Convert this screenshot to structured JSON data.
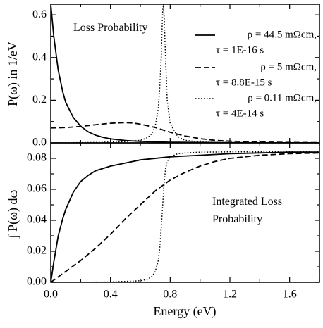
{
  "chart_data": [
    {
      "type": "line",
      "panel": "top",
      "ylabel": "P(ω) in 1/eV",
      "xlabel": "",
      "xlim": [
        0,
        1.8
      ],
      "ylim": [
        0,
        0.65
      ],
      "yticks": [
        0.0,
        0.2,
        0.4,
        0.6
      ],
      "ytick_labels": [
        "0.0",
        "0.2",
        "0.4",
        "0.6"
      ],
      "xticks": [
        0.0,
        0.4,
        0.8,
        1.2,
        1.6
      ],
      "annotation": "Loss Probability",
      "legend_position": "top-right",
      "series": [
        {
          "name_line1": "ρ = 44.5 mΩcm,",
          "name_line2": "τ = 1E-16 s",
          "style": "solid",
          "x": [
            0.0,
            0.02,
            0.05,
            0.08,
            0.1,
            0.15,
            0.2,
            0.25,
            0.3,
            0.35,
            0.4,
            0.5,
            0.6,
            0.7,
            0.8,
            1.0,
            1.2,
            1.4,
            1.6,
            1.8
          ],
          "y": [
            0.65,
            0.5,
            0.34,
            0.24,
            0.19,
            0.12,
            0.078,
            0.052,
            0.036,
            0.026,
            0.019,
            0.011,
            0.007,
            0.005,
            0.003,
            0.002,
            0.001,
            0.0005,
            0.0003,
            0.0002
          ]
        },
        {
          "name_line1": "ρ = 5 mΩcm,",
          "name_line2": "τ = 8.8E-15 s",
          "style": "dashed",
          "x": [
            0.0,
            0.1,
            0.2,
            0.3,
            0.4,
            0.5,
            0.55,
            0.6,
            0.7,
            0.8,
            0.9,
            1.0,
            1.1,
            1.2,
            1.4,
            1.6,
            1.8
          ],
          "y": [
            0.07,
            0.072,
            0.077,
            0.085,
            0.092,
            0.095,
            0.093,
            0.088,
            0.072,
            0.05,
            0.032,
            0.02,
            0.012,
            0.008,
            0.004,
            0.002,
            0.001
          ]
        },
        {
          "name_line1": "ρ = 0.11 mΩcm,",
          "name_line2": "τ = 4E-14 s",
          "style": "dotted",
          "x": [
            0.0,
            0.3,
            0.5,
            0.6,
            0.65,
            0.68,
            0.7,
            0.72,
            0.73,
            0.74,
            0.745,
            0.75,
            0.755,
            0.76,
            0.77,
            0.78,
            0.8,
            0.85,
            0.9,
            1.0,
            1.2,
            1.8
          ],
          "y": [
            0.0,
            0.002,
            0.006,
            0.012,
            0.025,
            0.045,
            0.08,
            0.16,
            0.26,
            0.4,
            0.52,
            0.62,
            0.65,
            0.58,
            0.38,
            0.2,
            0.09,
            0.03,
            0.012,
            0.004,
            0.001,
            0.0
          ]
        }
      ]
    },
    {
      "type": "line",
      "panel": "bottom",
      "ylabel": "∫ P(ω) dω",
      "xlabel": "Energy (eV)",
      "xlim": [
        0,
        1.8
      ],
      "ylim": [
        0,
        0.09
      ],
      "yticks": [
        0.0,
        0.02,
        0.04,
        0.06,
        0.08
      ],
      "ytick_labels": [
        "0.00",
        "0.02",
        "0.04",
        "0.06",
        "0.08"
      ],
      "xticks": [
        0.0,
        0.4,
        0.8,
        1.2,
        1.6
      ],
      "xtick_labels": [
        "0.0",
        "0.4",
        "0.8",
        "1.2",
        "1.6"
      ],
      "annotation_line1": "Integrated Loss",
      "annotation_line2": "Probability",
      "series": [
        {
          "style": "solid",
          "x": [
            0.0,
            0.02,
            0.05,
            0.08,
            0.1,
            0.15,
            0.2,
            0.25,
            0.3,
            0.4,
            0.5,
            0.6,
            0.8,
            1.0,
            1.2,
            1.4,
            1.6,
            1.8
          ],
          "y": [
            0.0,
            0.013,
            0.03,
            0.041,
            0.047,
            0.058,
            0.065,
            0.069,
            0.072,
            0.075,
            0.077,
            0.079,
            0.081,
            0.082,
            0.083,
            0.0835,
            0.084,
            0.084
          ]
        },
        {
          "style": "dashed",
          "x": [
            0.0,
            0.1,
            0.2,
            0.3,
            0.4,
            0.5,
            0.6,
            0.7,
            0.8,
            0.9,
            1.0,
            1.1,
            1.2,
            1.4,
            1.6,
            1.8
          ],
          "y": [
            0.0,
            0.007,
            0.014,
            0.022,
            0.031,
            0.041,
            0.05,
            0.059,
            0.066,
            0.071,
            0.075,
            0.078,
            0.08,
            0.082,
            0.083,
            0.0835
          ]
        },
        {
          "style": "dotted",
          "x": [
            0.0,
            0.4,
            0.6,
            0.65,
            0.68,
            0.7,
            0.72,
            0.73,
            0.74,
            0.75,
            0.76,
            0.77,
            0.78,
            0.8,
            0.85,
            0.9,
            1.0,
            1.2,
            1.8
          ],
          "y": [
            0.0,
            0.0002,
            0.001,
            0.002,
            0.004,
            0.007,
            0.014,
            0.022,
            0.035,
            0.05,
            0.065,
            0.074,
            0.078,
            0.081,
            0.083,
            0.0835,
            0.084,
            0.0842,
            0.0843
          ]
        }
      ]
    }
  ]
}
